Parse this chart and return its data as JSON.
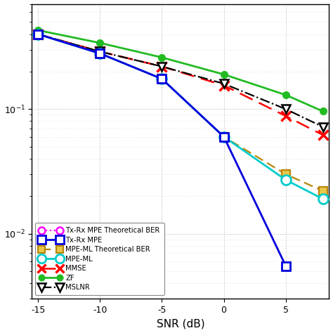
{
  "snr_short": [
    -15,
    -10,
    -5,
    0,
    5
  ],
  "snr_long": [
    -15,
    -10,
    -5,
    0,
    5,
    8
  ],
  "txrx_mpe_th": [
    0.4,
    0.28,
    0.175,
    0.06,
    0.0055
  ],
  "txrx_mpe": [
    0.4,
    0.28,
    0.175,
    0.06,
    0.0055
  ],
  "mpe_ml_th": [
    0.4,
    0.28,
    0.175,
    0.06,
    0.03,
    0.022
  ],
  "mpe_ml": [
    0.4,
    0.28,
    0.175,
    0.06,
    0.027,
    0.019
  ],
  "mmse": [
    0.4,
    0.29,
    0.22,
    0.155,
    0.088,
    0.062
  ],
  "zf": [
    0.43,
    0.34,
    0.26,
    0.19,
    0.13,
    0.096
  ],
  "mslnr": [
    0.4,
    0.29,
    0.22,
    0.16,
    0.1,
    0.072
  ],
  "xlabel": "SNR (dB)",
  "background": "#ffffff",
  "xlim": [
    -15.5,
    8.5
  ],
  "ylim_low": 0.003,
  "ylim_high": 0.7
}
